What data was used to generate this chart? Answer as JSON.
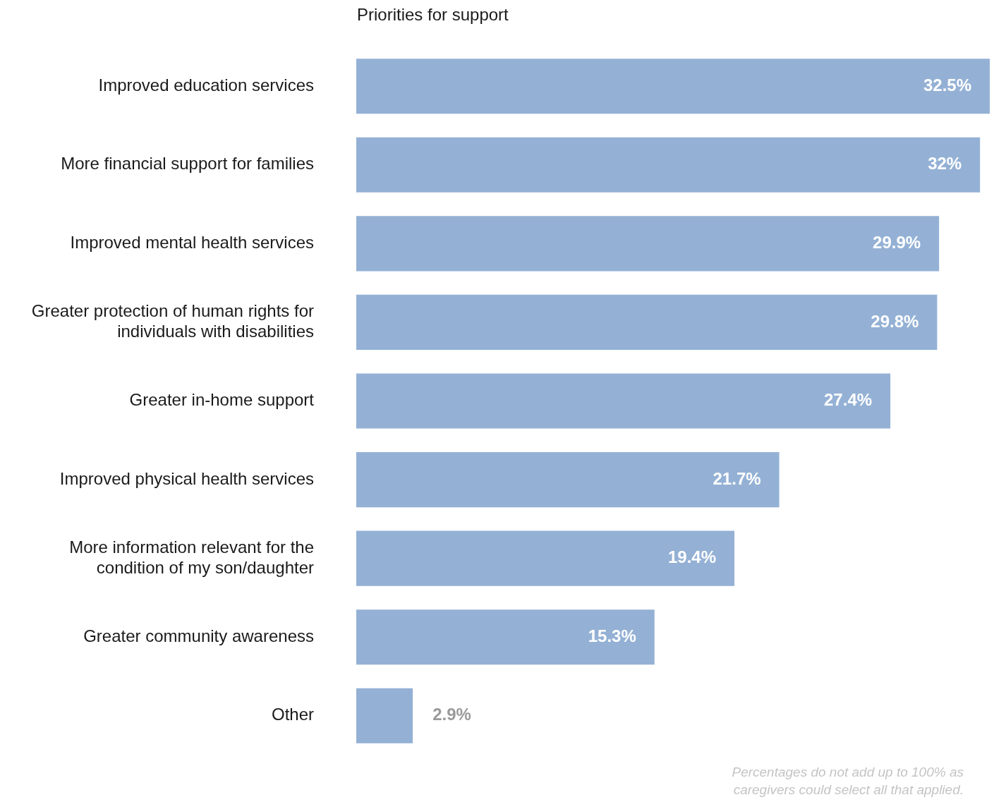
{
  "chart_data": {
    "type": "bar",
    "orientation": "horizontal",
    "title": "Priorities for support",
    "categories": [
      "Improved education services",
      "More financial support for families",
      "Improved mental health services",
      "Greater protection of human rights for individuals with disabilities",
      "Greater in-home support",
      "Improved physical health services",
      "More information relevant for the condition of my son/daughter",
      "Greater community awareness",
      "Other"
    ],
    "values": [
      32.5,
      32,
      29.9,
      29.8,
      27.4,
      21.7,
      19.4,
      15.3,
      2.9
    ],
    "value_labels": [
      "32.5%",
      "32%",
      "29.9%",
      "29.8%",
      "27.4%",
      "21.7%",
      "19.4%",
      "15.3%",
      "2.9%"
    ],
    "color": "#94b1d5",
    "xlim": [
      0,
      32.5
    ],
    "tick_labels": "y",
    "annotations": [
      "Percentages do not add up to 100% as caregivers could select all that applied."
    ]
  }
}
